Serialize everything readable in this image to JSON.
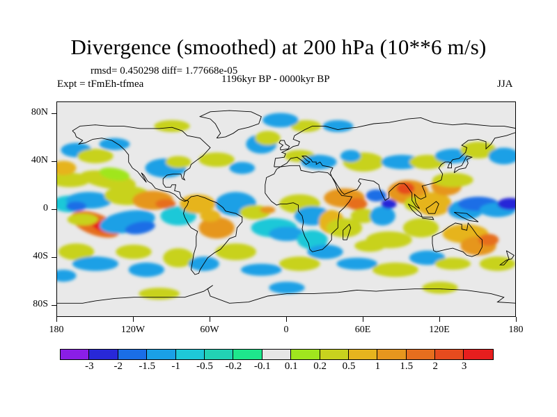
{
  "title": "Divergence (smoothed) at 200 hPa (10**6 m/s)",
  "stats": "rmsd= 0.450298 diff= 1.77668e-05",
  "experiment": "Expt = tFmEh-tfmea",
  "period": "1196kyr BP - 0000kyr BP",
  "season": "JJA",
  "map": {
    "projection": "cylindrical equidistant",
    "lat_range": [
      -90,
      90
    ],
    "lon_range": [
      -180,
      180
    ],
    "background_color": "#e9e9e9",
    "lat_ticks": [
      {
        "label": "80N",
        "value": 80
      },
      {
        "label": "40N",
        "value": 40
      },
      {
        "label": "0",
        "value": 0
      },
      {
        "label": "40S",
        "value": -40
      },
      {
        "label": "80S",
        "value": -80
      }
    ],
    "lon_ticks": [
      {
        "label": "180",
        "value": -180
      },
      {
        "label": "120W",
        "value": -120
      },
      {
        "label": "60W",
        "value": -60
      },
      {
        "label": "0",
        "value": 0
      },
      {
        "label": "60E",
        "value": 60
      },
      {
        "label": "120E",
        "value": 120
      },
      {
        "label": "180",
        "value": 180
      }
    ]
  },
  "colorbar": {
    "colors": [
      "#8a1ee6",
      "#2828d8",
      "#1a6ee6",
      "#1aa0e6",
      "#1ec8d8",
      "#22d2b4",
      "#1ee68c",
      "#e6e6e6",
      "#a0e61e",
      "#c8d21e",
      "#e6b41e",
      "#e6961e",
      "#e66e1e",
      "#e64b1e",
      "#e61e1e"
    ],
    "labels": [
      "-3",
      "-2",
      "-1.5",
      "-1",
      "-0.5",
      "-0.2",
      "-0.1",
      "0.1",
      "0.2",
      "0.5",
      "1",
      "1.5",
      "2",
      "3"
    ]
  }
}
